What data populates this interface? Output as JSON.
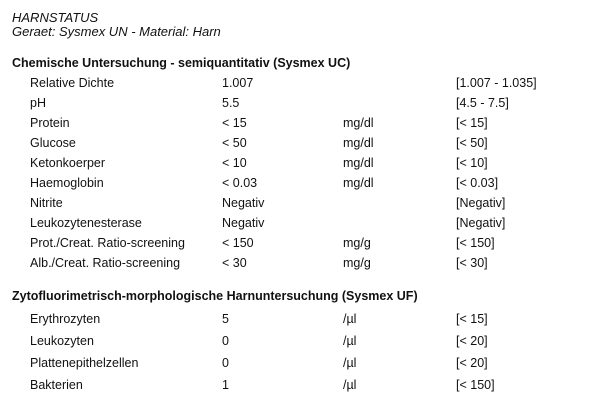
{
  "header": {
    "title": "HARNSTATUS",
    "subtitle": "Geraet: Sysmex UN - Material: Harn"
  },
  "sections": [
    {
      "title": "Chemische Untersuchung - semiquantitativ (Sysmex UC)",
      "rows": [
        {
          "name": "Relative Dichte",
          "value": "1.007",
          "unit": "",
          "ref": "[1.007 - 1.035]"
        },
        {
          "name": "pH",
          "value": "5.5",
          "unit": "",
          "ref": "[4.5 - 7.5]"
        },
        {
          "name": "Protein",
          "value": "< 15",
          "unit": "mg/dl",
          "ref": "[< 15]"
        },
        {
          "name": "Glucose",
          "value": "< 50",
          "unit": "mg/dl",
          "ref": "[< 50]"
        },
        {
          "name": "Ketonkoerper",
          "value": "< 10",
          "unit": "mg/dl",
          "ref": "[< 10]"
        },
        {
          "name": "Haemoglobin",
          "value": "< 0.03",
          "unit": "mg/dl",
          "ref": "[< 0.03]"
        },
        {
          "name": "Nitrite",
          "value": "Negativ",
          "unit": "",
          "ref": "[Negativ]"
        },
        {
          "name": "Leukozytenesterase",
          "value": "Negativ",
          "unit": "",
          "ref": "[Negativ]"
        },
        {
          "name": "Prot./Creat. Ratio-screening",
          "value": "< 150",
          "unit": "mg/g",
          "ref": "[< 150]"
        },
        {
          "name": "Alb./Creat. Ratio-screening",
          "value": "< 30",
          "unit": "mg/g",
          "ref": "[< 30]"
        }
      ]
    },
    {
      "title": "Zytofluorimetrisch-morphologische Harnuntersuchung (Sysmex UF)",
      "rows": [
        {
          "name": "Erythrozyten",
          "value": "5",
          "unit": "/µl",
          "ref": "[< 15]"
        },
        {
          "name": "Leukozyten",
          "value": "0",
          "unit": "/µl",
          "ref": "[< 20]"
        },
        {
          "name": "Plattenepithelzellen",
          "value": "0",
          "unit": "/µl",
          "ref": "[< 20]"
        },
        {
          "name": "Bakterien",
          "value": "1",
          "unit": "/µl",
          "ref": "[< 150]"
        }
      ]
    }
  ]
}
